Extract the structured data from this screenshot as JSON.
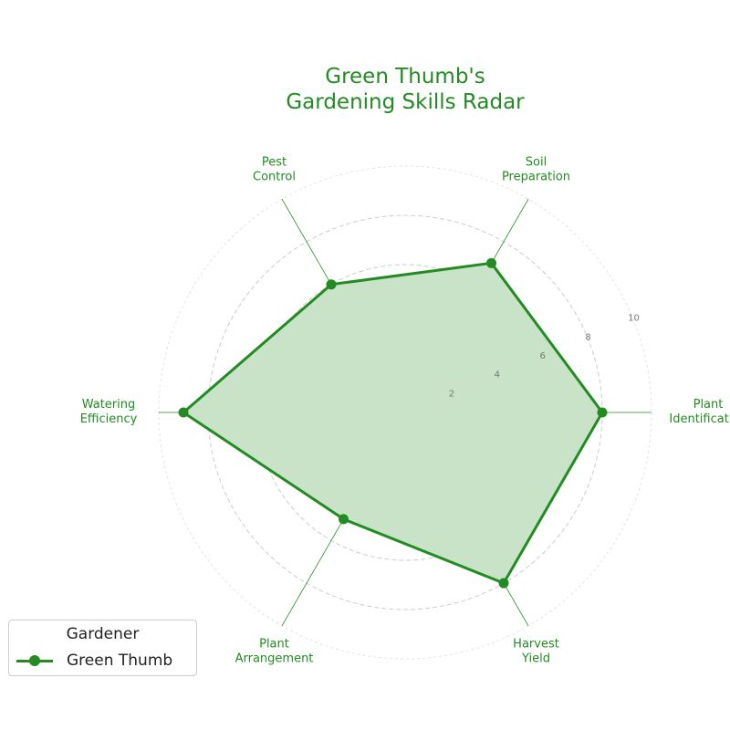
{
  "colors": {
    "accent": "#228b22",
    "fill": "#c8e3c8",
    "grid": "#cccccc",
    "tick": "#777777"
  },
  "chart_data": {
    "type": "radar",
    "title": [
      "Green Thumb's",
      "Gardening Skills Radar"
    ],
    "categories": [
      [
        "Plant",
        "Identification"
      ],
      [
        "Soil",
        "Preparation"
      ],
      [
        "Pest",
        "Control"
      ],
      [
        "Watering",
        "Efficiency"
      ],
      [
        "Plant",
        "Arrangement"
      ],
      [
        "Harvest",
        "Yield"
      ]
    ],
    "series": [
      {
        "name": "Green Thumb",
        "values": [
          8,
          7,
          6,
          9,
          5,
          8
        ]
      }
    ],
    "rlim": [
      0,
      10
    ],
    "rticks": [
      2,
      4,
      6,
      8,
      10
    ],
    "grid": true,
    "legend": {
      "title": "Gardener",
      "placement": "bottom-left"
    }
  }
}
